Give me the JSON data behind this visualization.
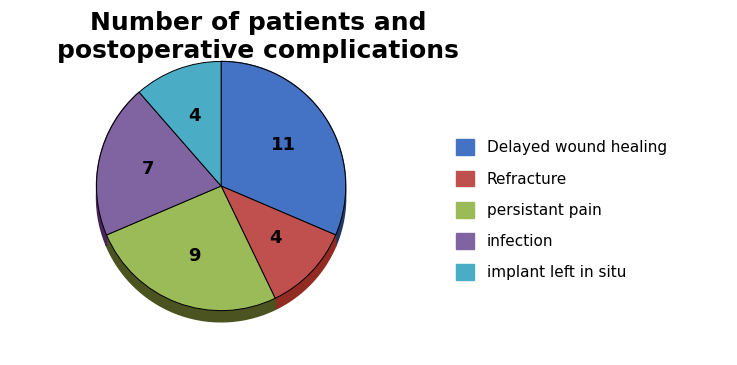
{
  "title": "Number of patients and\npostoperative complications",
  "labels": [
    "Delayed wound healing",
    "Refracture",
    "persistant pain",
    "infection",
    "implant left in situ"
  ],
  "values": [
    11,
    4,
    9,
    7,
    4
  ],
  "colors": [
    "#4472C4",
    "#C0504D",
    "#9BBB59",
    "#8064A2",
    "#4BACC6"
  ],
  "shadow_colors": [
    "#1F3864",
    "#922B21",
    "#4B5320",
    "#4A235A",
    "#1B6B7B"
  ],
  "startangle": 90,
  "title_fontsize": 18,
  "legend_fontsize": 11,
  "background_color": "#ffffff"
}
